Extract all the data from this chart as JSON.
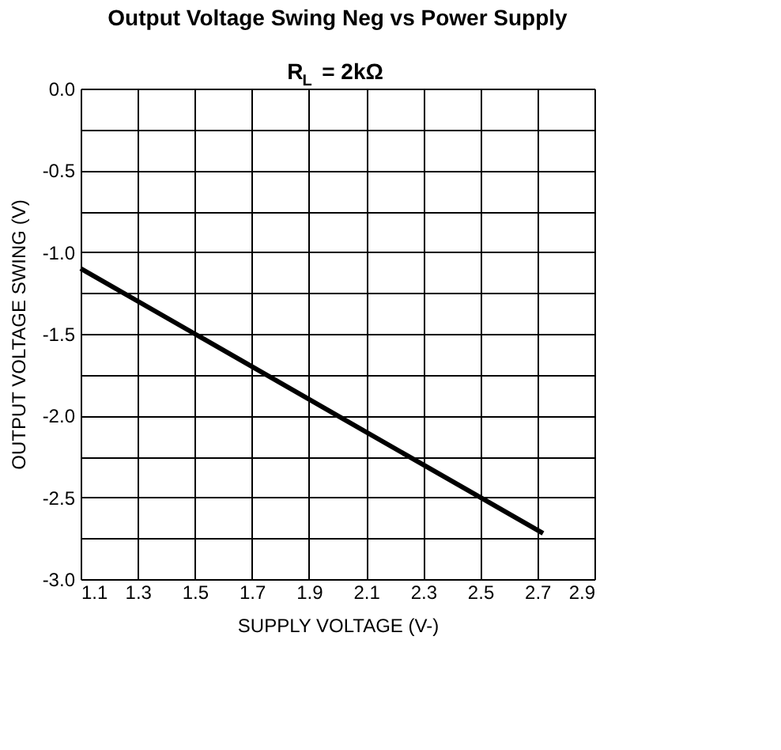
{
  "chart_data": {
    "type": "line",
    "title": "Output Voltage Swing Neg vs Power Supply",
    "subtitle": "R$_{L}$ = 2kΩ",
    "xlabel": "SUPPLY VOLTAGE (V-)",
    "ylabel": "OUTPUT VOLTAGE SWING (V)",
    "x": [
      1.1,
      1.5,
      2.0,
      2.5,
      2.72
    ],
    "series": [
      {
        "color": "#000000",
        "values": [
          -1.1,
          -1.5,
          -2.0,
          -2.5,
          -2.72
        ]
      }
    ],
    "xlim": [
      1.1,
      2.9
    ],
    "xticks": [
      1.1,
      1.3,
      1.5,
      1.7,
      1.9,
      2.1,
      2.3,
      2.5,
      2.7,
      2.9
    ],
    "ylim": [
      -3.0,
      0.0
    ],
    "yticks": [
      {
        "value": -3.0,
        "label": "-3.0"
      },
      {
        "value": -2.75,
        "label": null
      },
      {
        "value": -2.5,
        "label": "-2.5"
      },
      {
        "value": -2.25,
        "label": null
      },
      {
        "value": -2.0,
        "label": "-2.0"
      },
      {
        "value": -1.75,
        "label": null
      },
      {
        "value": -1.5,
        "label": "-1.5"
      },
      {
        "value": -1.25,
        "label": null
      },
      {
        "value": -1.0,
        "label": "-1.0"
      },
      {
        "value": -0.75,
        "label": null
      },
      {
        "value": -0.5,
        "label": "-0.5"
      },
      {
        "value": -0.25,
        "label": null
      },
      {
        "value": 0.0,
        "label": "0.0"
      }
    ],
    "grid": true,
    "marker": "none",
    "line_style": "solid"
  }
}
